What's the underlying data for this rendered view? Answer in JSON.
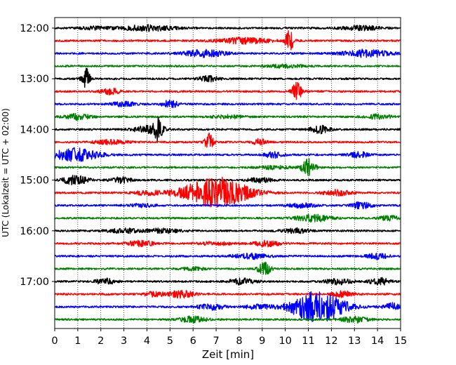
{
  "chart_data": {
    "type": "line",
    "title": "",
    "xlabel": "Zeit  [min]",
    "ylabel": "UTC (Lokalzeit = UTC + 02:00)",
    "xlim": [
      0,
      15
    ],
    "x_ticks": [
      "0",
      "1",
      "2",
      "3",
      "4",
      "5",
      "6",
      "7",
      "8",
      "9",
      "10",
      "11",
      "12",
      "13",
      "14",
      "15"
    ],
    "y_ticks": [
      "12:00",
      "13:00",
      "14:00",
      "15:00",
      "16:00",
      "17:00"
    ],
    "grid": "vertical dotted",
    "trace_interval_min": 15,
    "colors": [
      "#000000",
      "#ff0000",
      "#0000ff",
      "#008000"
    ],
    "traces": [
      {
        "start": "12:00",
        "color": "#000000",
        "events": [
          [
            4.0,
            4,
            0.8
          ],
          [
            1.8,
            2,
            0.5
          ],
          [
            13.3,
            3,
            0.6
          ]
        ]
      },
      {
        "start": "12:15",
        "color": "#ff0000",
        "events": [
          [
            10.2,
            16,
            0.12
          ],
          [
            8.2,
            4,
            0.8
          ]
        ]
      },
      {
        "start": "12:30",
        "color": "#0000ff",
        "events": [
          [
            6.5,
            5,
            0.6
          ],
          [
            13.5,
            5,
            0.7
          ]
        ]
      },
      {
        "start": "12:45",
        "color": "#008000",
        "events": [
          [
            10.0,
            2,
            0.6
          ]
        ]
      },
      {
        "start": "13:00",
        "color": "#000000",
        "events": [
          [
            1.35,
            15,
            0.12
          ],
          [
            6.7,
            4,
            0.3
          ]
        ]
      },
      {
        "start": "13:15",
        "color": "#ff0000",
        "events": [
          [
            10.5,
            12,
            0.15
          ],
          [
            2.4,
            4,
            0.3
          ]
        ]
      },
      {
        "start": "13:30",
        "color": "#0000ff",
        "events": [
          [
            5.0,
            5,
            0.25
          ],
          [
            3.0,
            3,
            0.4
          ]
        ]
      },
      {
        "start": "13:45",
        "color": "#008000",
        "events": [
          [
            1.0,
            4,
            0.4
          ],
          [
            7.5,
            2,
            0.5
          ],
          [
            14.0,
            3,
            0.4
          ]
        ]
      },
      {
        "start": "14:00",
        "color": "#000000",
        "events": [
          [
            4.5,
            14,
            0.15
          ],
          [
            4.0,
            5,
            0.4
          ],
          [
            11.5,
            5,
            0.3
          ]
        ]
      },
      {
        "start": "14:15",
        "color": "#ff0000",
        "events": [
          [
            6.7,
            14,
            0.12
          ],
          [
            8.9,
            5,
            0.2
          ],
          [
            2.4,
            3,
            0.5
          ]
        ]
      },
      {
        "start": "14:30",
        "color": "#0000ff",
        "events": [
          [
            0.9,
            9,
            0.7
          ],
          [
            9.5,
            4,
            0.3
          ],
          [
            13.2,
            4,
            0.3
          ]
        ]
      },
      {
        "start": "14:45",
        "color": "#008000",
        "events": [
          [
            11.0,
            12,
            0.2
          ],
          [
            9.5,
            2,
            0.5
          ]
        ]
      },
      {
        "start": "15:00",
        "color": "#000000",
        "events": [
          [
            0.9,
            6,
            0.4
          ],
          [
            2.9,
            4,
            0.3
          ],
          [
            8.9,
            3,
            0.4
          ]
        ]
      },
      {
        "start": "15:15",
        "color": "#ff0000",
        "events": [
          [
            7.0,
            22,
            1.0
          ],
          [
            12.2,
            4,
            0.4
          ],
          [
            4.0,
            3,
            0.4
          ]
        ]
      },
      {
        "start": "15:30",
        "color": "#0000ff",
        "events": [
          [
            13.3,
            5,
            0.3
          ],
          [
            10.7,
            3,
            0.4
          ],
          [
            3.8,
            2,
            0.4
          ]
        ]
      },
      {
        "start": "15:45",
        "color": "#008000",
        "events": [
          [
            11.2,
            5,
            0.5
          ],
          [
            14.5,
            3,
            0.3
          ]
        ]
      },
      {
        "start": "16:00",
        "color": "#000000",
        "events": [
          [
            3.0,
            3,
            0.5
          ],
          [
            4.7,
            3,
            0.5
          ],
          [
            10.5,
            3,
            0.4
          ]
        ]
      },
      {
        "start": "16:15",
        "color": "#ff0000",
        "events": [
          [
            3.7,
            4,
            0.4
          ],
          [
            9.2,
            4,
            0.4
          ],
          [
            7.0,
            2,
            0.5
          ]
        ]
      },
      {
        "start": "16:30",
        "color": "#0000ff",
        "events": [
          [
            8.5,
            4,
            0.5
          ],
          [
            14.0,
            4,
            0.3
          ]
        ]
      },
      {
        "start": "16:45",
        "color": "#008000",
        "events": [
          [
            9.1,
            9,
            0.2
          ],
          [
            6.0,
            2,
            0.4
          ]
        ]
      },
      {
        "start": "17:00",
        "color": "#000000",
        "events": [
          [
            2.2,
            4,
            0.3
          ],
          [
            8.1,
            4,
            0.4
          ],
          [
            12.3,
            4,
            0.4
          ],
          [
            14.1,
            5,
            0.3
          ]
        ]
      },
      {
        "start": "17:15",
        "color": "#ff0000",
        "events": [
          [
            5.5,
            5,
            0.4
          ],
          [
            12.5,
            4,
            0.3
          ],
          [
            4.3,
            3,
            0.3
          ]
        ]
      },
      {
        "start": "17:30",
        "color": "#0000ff",
        "events": [
          [
            11.4,
            22,
            0.8
          ],
          [
            14.7,
            5,
            0.3
          ],
          [
            6.8,
            4,
            0.4
          ],
          [
            8.8,
            3,
            0.4
          ]
        ]
      },
      {
        "start": "17:45",
        "color": "#008000",
        "events": [
          [
            6.0,
            4,
            0.4
          ],
          [
            13.0,
            4,
            0.4
          ]
        ]
      }
    ]
  }
}
